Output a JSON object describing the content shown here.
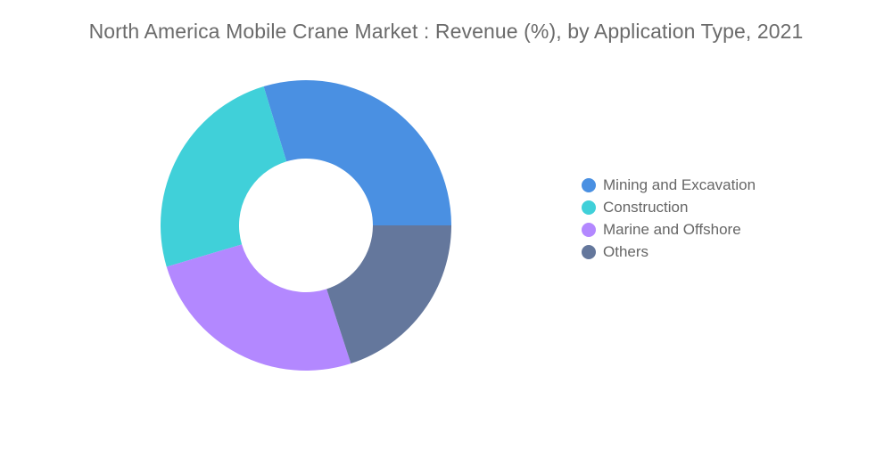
{
  "chart_data": {
    "type": "pie",
    "title": "North America Mobile Crane Market : Revenue (%), by Application Type, 2021",
    "categories": [
      "Mining and Excavation",
      "Construction",
      "Marine and Offshore",
      "Others"
    ],
    "values": [
      29.7,
      24.9,
      25.4,
      20.0
    ],
    "colors": [
      "#4a90e2",
      "#40d0d9",
      "#b388ff",
      "#64779c"
    ],
    "donut": true,
    "legend_position": "right"
  }
}
